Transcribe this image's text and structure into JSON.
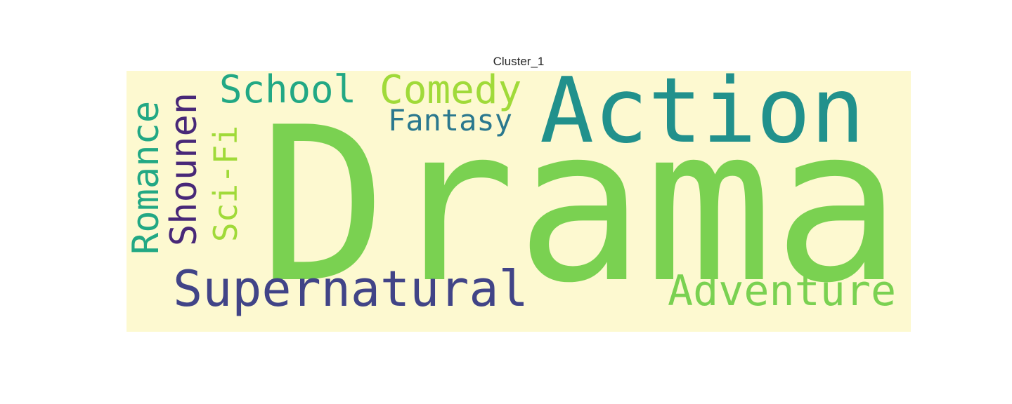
{
  "chart_data": {
    "type": "wordcloud",
    "title": "Cluster_1",
    "background_color": "#fdf9d0",
    "words": [
      {
        "text": "Drama",
        "weight": 1.0,
        "color": "#7ad151",
        "orientation": "horizontal"
      },
      {
        "text": "Action",
        "weight": 0.45,
        "color": "#21918c",
        "orientation": "horizontal"
      },
      {
        "text": "Supernatural",
        "weight": 0.24,
        "color": "#414487",
        "orientation": "horizontal"
      },
      {
        "text": "Adventure",
        "weight": 0.2,
        "color": "#7ad151",
        "orientation": "horizontal"
      },
      {
        "text": "Comedy",
        "weight": 0.2,
        "color": "#a0da39",
        "orientation": "horizontal"
      },
      {
        "text": "School",
        "weight": 0.18,
        "color": "#22a884",
        "orientation": "horizontal"
      },
      {
        "text": "Romance",
        "weight": 0.17,
        "color": "#22a884",
        "orientation": "vertical"
      },
      {
        "text": "Shounen",
        "weight": 0.17,
        "color": "#482878",
        "orientation": "vertical"
      },
      {
        "text": "Sci-Fi",
        "weight": 0.15,
        "color": "#a0da39",
        "orientation": "vertical"
      },
      {
        "text": "Fantasy",
        "weight": 0.14,
        "color": "#2a788e",
        "orientation": "horizontal"
      }
    ]
  }
}
